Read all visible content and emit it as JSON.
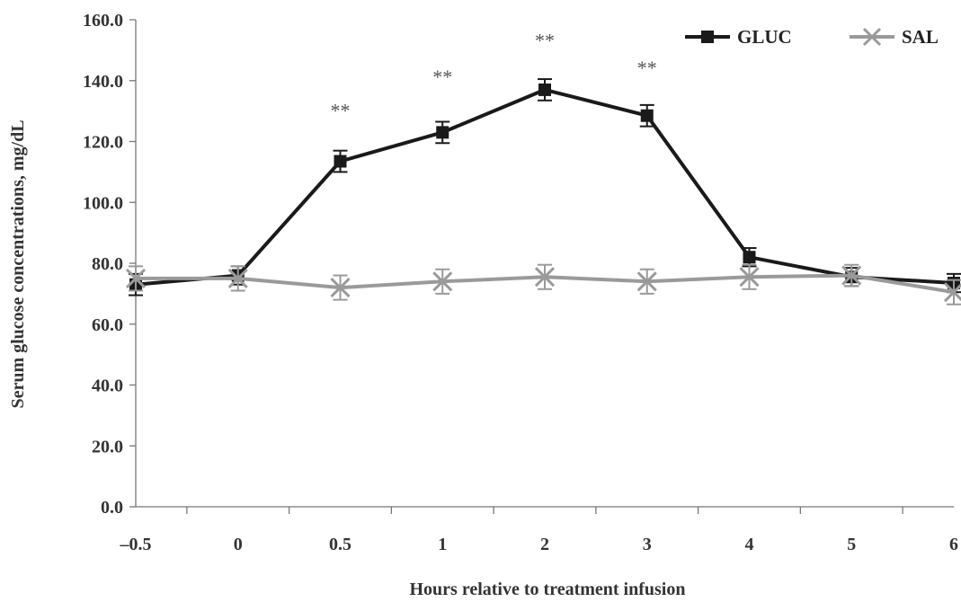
{
  "chart_data": {
    "type": "line",
    "title": "",
    "xlabel": "Hours relative to treatment infusion",
    "ylabel": "Serum glucose concentrations, mg/dL",
    "categories": [
      "–0.5",
      "0",
      "0.5",
      "1",
      "2",
      "3",
      "4",
      "5",
      "6"
    ],
    "y_ticks": [
      "0.0",
      "20.0",
      "40.0",
      "60.0",
      "80.0",
      "100.0",
      "120.0",
      "140.0",
      "160.0"
    ],
    "ylim": [
      0,
      160
    ],
    "grid": false,
    "legend_position": "top-right",
    "series": [
      {
        "name": "GLUC",
        "color": "#1a1a1a",
        "marker": "square",
        "values": [
          73.0,
          76.0,
          113.5,
          123.0,
          137.0,
          128.5,
          82.0,
          75.5,
          73.5
        ],
        "errors": [
          3.5,
          3.0,
          3.5,
          3.5,
          3.5,
          3.5,
          3.0,
          3.0,
          3.0
        ]
      },
      {
        "name": "SAL",
        "color": "#9a9a9a",
        "marker": "x",
        "values": [
          75.0,
          75.0,
          72.0,
          74.0,
          75.5,
          74.0,
          75.5,
          76.0,
          70.5
        ],
        "errors": [
          4.0,
          4.0,
          4.0,
          4.0,
          4.0,
          4.0,
          4.0,
          3.5,
          4.0
        ]
      }
    ],
    "annotations": [
      {
        "x_index": 2,
        "y": 128,
        "text": "**"
      },
      {
        "x_index": 3,
        "y": 139,
        "text": "**"
      },
      {
        "x_index": 4,
        "y": 151,
        "text": "**"
      },
      {
        "x_index": 5,
        "y": 142,
        "text": "**"
      }
    ]
  }
}
